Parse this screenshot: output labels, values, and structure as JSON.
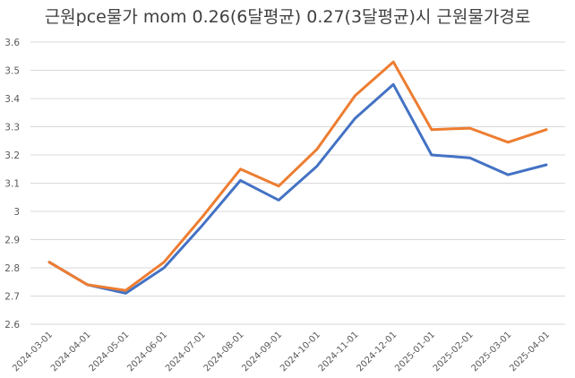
{
  "chart_data": {
    "type": "line",
    "title": "근원pce물가 mom 0.26(6달평균) 0.27(3달평균)시 근원물가경로",
    "xlabel": "",
    "ylabel": "",
    "categories": [
      "2024-03-01",
      "2024-04-01",
      "2024-05-01",
      "2024-06-01",
      "2024-07-01",
      "2024-08-01",
      "2024-09-01",
      "2024-10-01",
      "2024-11-01",
      "2024-12-01",
      "2025-01-01",
      "2025-02-01",
      "2025-03-01",
      "2025-04-01"
    ],
    "y_ticks": [
      "2.6",
      "2.7",
      "2.8",
      "2.9",
      "3",
      "3.1",
      "3.2",
      "3.3",
      "3.4",
      "3.5",
      "3.6"
    ],
    "ylim": [
      2.6,
      3.6
    ],
    "grid": true,
    "legend": "none",
    "series": [
      {
        "color": "#4472C4",
        "values": [
          2.82,
          2.74,
          2.71,
          2.8,
          2.95,
          3.11,
          3.04,
          3.16,
          3.33,
          3.45,
          3.2,
          3.19,
          3.13,
          3.165
        ]
      },
      {
        "color": "#ED7D31",
        "values": [
          2.82,
          2.74,
          2.72,
          2.82,
          2.98,
          3.15,
          3.09,
          3.22,
          3.41,
          3.53,
          3.29,
          3.295,
          3.245,
          3.29
        ]
      }
    ]
  }
}
